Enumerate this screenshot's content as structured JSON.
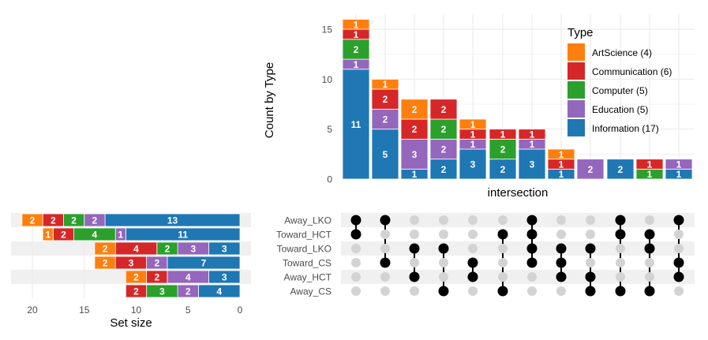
{
  "chart_data": {
    "type": "upset",
    "colors": {
      "ArtScience": "#ff7f0e",
      "Communication": "#d62728",
      "Computer": "#2ca02c",
      "Education": "#9467bd",
      "Information": "#1f77b4",
      "grid": "#ebebeb",
      "band": "#f0f0f0",
      "dot_on": "#000000",
      "dot_off": "#d3d3d3"
    },
    "intersection_chart": {
      "type": "stacked_bar",
      "ylabel": "Count by Type",
      "xlabel": "intersection",
      "ylim": [
        0,
        16.8
      ],
      "yticks": [
        0,
        5,
        10,
        15
      ],
      "stack_order": [
        "Information",
        "Education",
        "Computer",
        "Communication",
        "ArtScience"
      ],
      "bars": [
        {
          "Information": 11,
          "Education": 1,
          "Computer": 2,
          "Communication": 1,
          "ArtScience": 1
        },
        {
          "Information": 5,
          "Education": 2,
          "Communication": 2,
          "ArtScience": 1
        },
        {
          "Information": 1,
          "Education": 3,
          "Communication": 2,
          "ArtScience": 2
        },
        {
          "Information": 2,
          "Education": 2,
          "Computer": 2,
          "Communication": 2
        },
        {
          "Information": 3,
          "Education": 1,
          "Communication": 1,
          "ArtScience": 1
        },
        {
          "Information": 2,
          "Computer": 2,
          "Communication": 1
        },
        {
          "Information": 3,
          "Education": 1,
          "Communication": 1
        },
        {
          "Information": 1,
          "Communication": 1,
          "ArtScience": 1
        },
        {
          "Education": 2
        },
        {
          "Information": 2
        },
        {
          "Computer": 1,
          "Communication": 1
        },
        {
          "Information": 1,
          "Education": 1
        }
      ]
    },
    "legend": {
      "title": "Type",
      "entries": [
        {
          "key": "ArtScience",
          "label": "ArtScience (4)"
        },
        {
          "key": "Communication",
          "label": "Communication (6)"
        },
        {
          "key": "Computer",
          "label": "Computer (5)"
        },
        {
          "key": "Education",
          "label": "Education (5)"
        },
        {
          "key": "Information",
          "label": "Information (17)"
        }
      ]
    },
    "set_size_chart": {
      "type": "stacked_bar_horizontal",
      "xlabel": "Set size",
      "xticks": [
        20,
        15,
        10,
        5,
        0
      ],
      "xlim": [
        0,
        21.5
      ],
      "stack_order_from_zero": [
        "Information",
        "Education",
        "Computer",
        "Communication",
        "ArtScience"
      ],
      "sets": [
        {
          "name": "Away_LKO",
          "Information": 13,
          "Education": 2,
          "Computer": 2,
          "Communication": 2,
          "ArtScience": 2
        },
        {
          "name": "Toward_HCT",
          "Information": 11,
          "Education": 1,
          "Computer": 4,
          "Communication": 2,
          "ArtScience": 1
        },
        {
          "name": "Toward_LKO",
          "Information": 3,
          "Education": 3,
          "Computer": 2,
          "Communication": 4,
          "ArtScience": 2
        },
        {
          "name": "Toward_CS",
          "Information": 7,
          "Education": 2,
          "Communication": 3,
          "ArtScience": 2
        },
        {
          "name": "Away_HCT",
          "Information": 3,
          "Education": 4,
          "Communication": 2,
          "ArtScience": 2
        },
        {
          "name": "Away_CS",
          "Information": 4,
          "Education": 2,
          "Computer": 3,
          "Communication": 2
        }
      ]
    },
    "matrix": {
      "sets": [
        "Away_LKO",
        "Toward_HCT",
        "Toward_LKO",
        "Toward_CS",
        "Away_HCT",
        "Away_CS"
      ],
      "intersections": [
        [
          "Away_LKO",
          "Toward_HCT"
        ],
        [
          "Away_LKO",
          "Toward_CS"
        ],
        [
          "Toward_LKO",
          "Away_HCT"
        ],
        [
          "Toward_LKO",
          "Away_CS"
        ],
        [
          "Toward_CS",
          "Away_HCT"
        ],
        [
          "Toward_HCT",
          "Away_CS"
        ],
        [
          "Away_LKO",
          "Toward_HCT",
          "Toward_LKO",
          "Toward_CS"
        ],
        [
          "Toward_LKO",
          "Toward_CS",
          "Away_HCT"
        ],
        [
          "Toward_LKO",
          "Away_HCT",
          "Away_CS"
        ],
        [
          "Away_LKO",
          "Toward_HCT",
          "Away_CS"
        ],
        [
          "Toward_HCT",
          "Toward_LKO",
          "Away_CS"
        ],
        [
          "Away_LKO",
          "Toward_CS",
          "Away_HCT"
        ]
      ]
    }
  }
}
